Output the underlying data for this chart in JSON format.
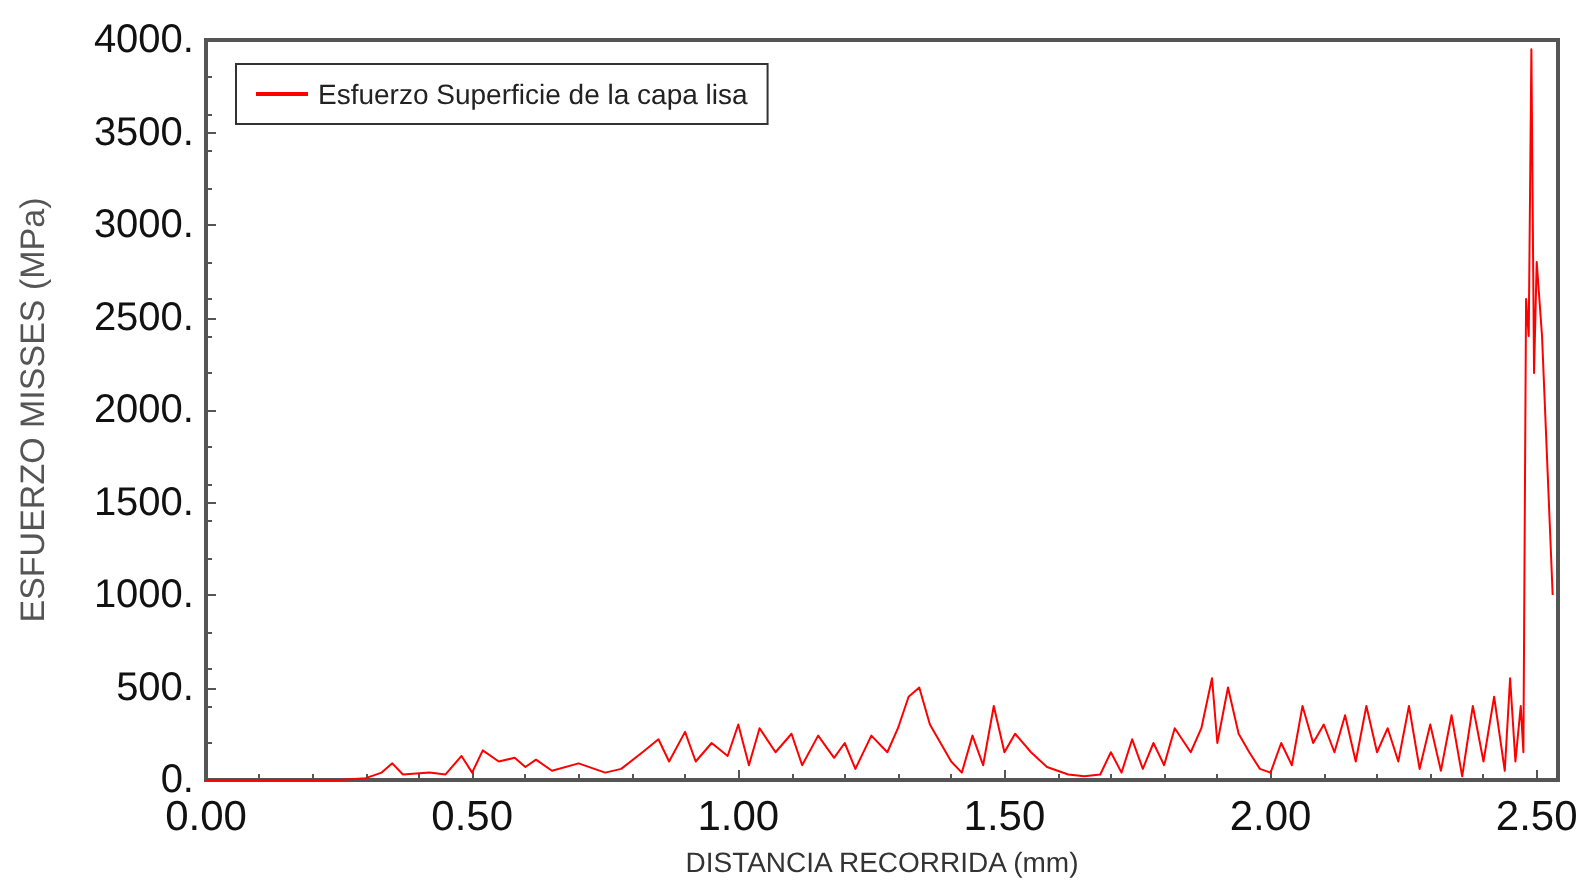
{
  "chart_data": {
    "type": "line",
    "xlabel": "DISTANCIA RECORRIDA (mm)",
    "ylabel": "ESFUERZO MISSES (MPa)",
    "legend": "top left",
    "grid": false,
    "marker": "none",
    "line_style": "solid",
    "xlim": [
      0,
      2.54
    ],
    "ylim": [
      0,
      4000
    ],
    "xticks": [
      {
        "value": 0,
        "label": "0.00"
      },
      {
        "value": 0.5,
        "label": "0.50"
      },
      {
        "value": 1,
        "label": "1.00"
      },
      {
        "value": 1.5,
        "label": "1.50"
      },
      {
        "value": 2,
        "label": "2.00"
      },
      {
        "value": 2.5,
        "label": "2.50"
      }
    ],
    "yticks": [
      {
        "value": 0,
        "label": "0."
      },
      {
        "value": 500,
        "label": "500."
      },
      {
        "value": 1000,
        "label": "1000."
      },
      {
        "value": 1500,
        "label": "1500."
      },
      {
        "value": 2000,
        "label": "2000."
      },
      {
        "value": 2500,
        "label": "2500."
      },
      {
        "value": 3000,
        "label": "3000."
      },
      {
        "value": 3500,
        "label": "3500."
      },
      {
        "value": 4000,
        "label": "4000."
      }
    ],
    "series": [
      {
        "name": "Esfuerzo Superficie de la capa lisa",
        "color": "#ff0000",
        "x": [
          0,
          0.25,
          0.3,
          0.33,
          0.35,
          0.37,
          0.42,
          0.45,
          0.48,
          0.5,
          0.52,
          0.55,
          0.58,
          0.6,
          0.62,
          0.65,
          0.7,
          0.75,
          0.78,
          0.82,
          0.85,
          0.87,
          0.9,
          0.92,
          0.95,
          0.98,
          1,
          1.02,
          1.04,
          1.07,
          1.1,
          1.12,
          1.15,
          1.18,
          1.2,
          1.22,
          1.25,
          1.28,
          1.3,
          1.32,
          1.34,
          1.36,
          1.38,
          1.4,
          1.42,
          1.44,
          1.46,
          1.48,
          1.5,
          1.52,
          1.55,
          1.58,
          1.62,
          1.65,
          1.68,
          1.7,
          1.72,
          1.74,
          1.76,
          1.78,
          1.8,
          1.82,
          1.85,
          1.87,
          1.89,
          1.9,
          1.92,
          1.94,
          1.96,
          1.98,
          2,
          2.02,
          2.04,
          2.06,
          2.08,
          2.1,
          2.12,
          2.14,
          2.16,
          2.18,
          2.2,
          2.22,
          2.24,
          2.26,
          2.28,
          2.3,
          2.32,
          2.34,
          2.36,
          2.38,
          2.4,
          2.42,
          2.44,
          2.45,
          2.46,
          2.47,
          2.475,
          2.48,
          2.485,
          2.49,
          2.495,
          2.5,
          2.51,
          2.53
        ],
        "values": [
          0,
          0,
          10,
          40,
          90,
          30,
          40,
          30,
          130,
          40,
          160,
          100,
          120,
          70,
          110,
          50,
          90,
          40,
          60,
          150,
          220,
          100,
          260,
          100,
          200,
          130,
          300,
          80,
          280,
          150,
          250,
          80,
          240,
          120,
          200,
          60,
          240,
          150,
          280,
          450,
          500,
          300,
          200,
          100,
          40,
          240,
          80,
          400,
          150,
          250,
          150,
          70,
          30,
          20,
          30,
          150,
          40,
          220,
          60,
          200,
          80,
          280,
          150,
          280,
          550,
          200,
          500,
          250,
          150,
          60,
          40,
          200,
          80,
          400,
          200,
          300,
          150,
          350,
          100,
          400,
          150,
          280,
          100,
          400,
          60,
          300,
          50,
          350,
          20,
          400,
          100,
          450,
          50,
          550,
          100,
          400,
          150,
          2600,
          2400,
          3950,
          2200,
          2800,
          2400,
          1000
        ]
      }
    ]
  }
}
